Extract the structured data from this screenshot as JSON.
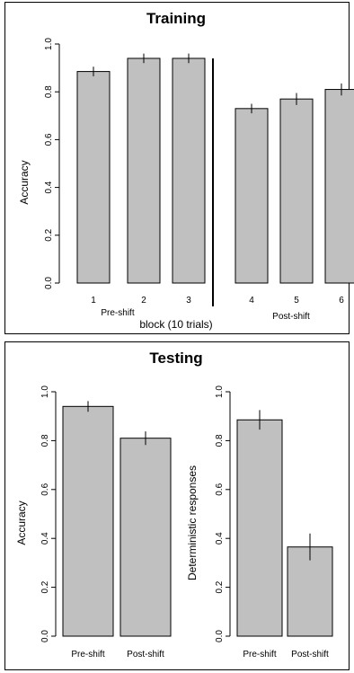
{
  "chart_data": [
    {
      "type": "bar",
      "title": "Training",
      "ylabel": "Accuracy",
      "xlabel": "block (10 trials)",
      "ylim": [
        0,
        1
      ],
      "yticks": [
        "0.0",
        "0.2",
        "0.4",
        "0.6",
        "0.8",
        "1.0"
      ],
      "categories": [
        "1",
        "2",
        "3",
        "4",
        "5",
        "6"
      ],
      "values": [
        0.885,
        0.94,
        0.94,
        0.73,
        0.77,
        0.81
      ],
      "error": [
        0.02,
        0.02,
        0.02,
        0.02,
        0.025,
        0.025
      ],
      "groups": [
        {
          "label": "Pre-shift",
          "categories": [
            "1",
            "2",
            "3"
          ]
        },
        {
          "label": "Post-shift",
          "categories": [
            "4",
            "5",
            "6"
          ]
        }
      ],
      "grid": false
    },
    {
      "type": "bar",
      "title": "Testing",
      "ylabel": "Accuracy",
      "ylim": [
        0,
        1
      ],
      "yticks": [
        "0.0",
        "0.2",
        "0.4",
        "0.6",
        "0.8",
        "1.0"
      ],
      "categories": [
        "Pre-shift",
        "Post-shift"
      ],
      "values": [
        0.94,
        0.81
      ],
      "error": [
        0.022,
        0.028
      ],
      "grid": false
    },
    {
      "type": "bar",
      "ylabel": "Deterministic responses",
      "ylim": [
        0,
        1
      ],
      "yticks": [
        "0.0",
        "0.2",
        "0.4",
        "0.6",
        "0.8",
        "1.0"
      ],
      "categories": [
        "Pre-shift",
        "Post-shift"
      ],
      "values": [
        0.885,
        0.365
      ],
      "error": [
        0.04,
        0.055
      ],
      "grid": false
    }
  ],
  "colors": {
    "bar_fill": "#c0c0c0",
    "stroke": "#000000"
  }
}
